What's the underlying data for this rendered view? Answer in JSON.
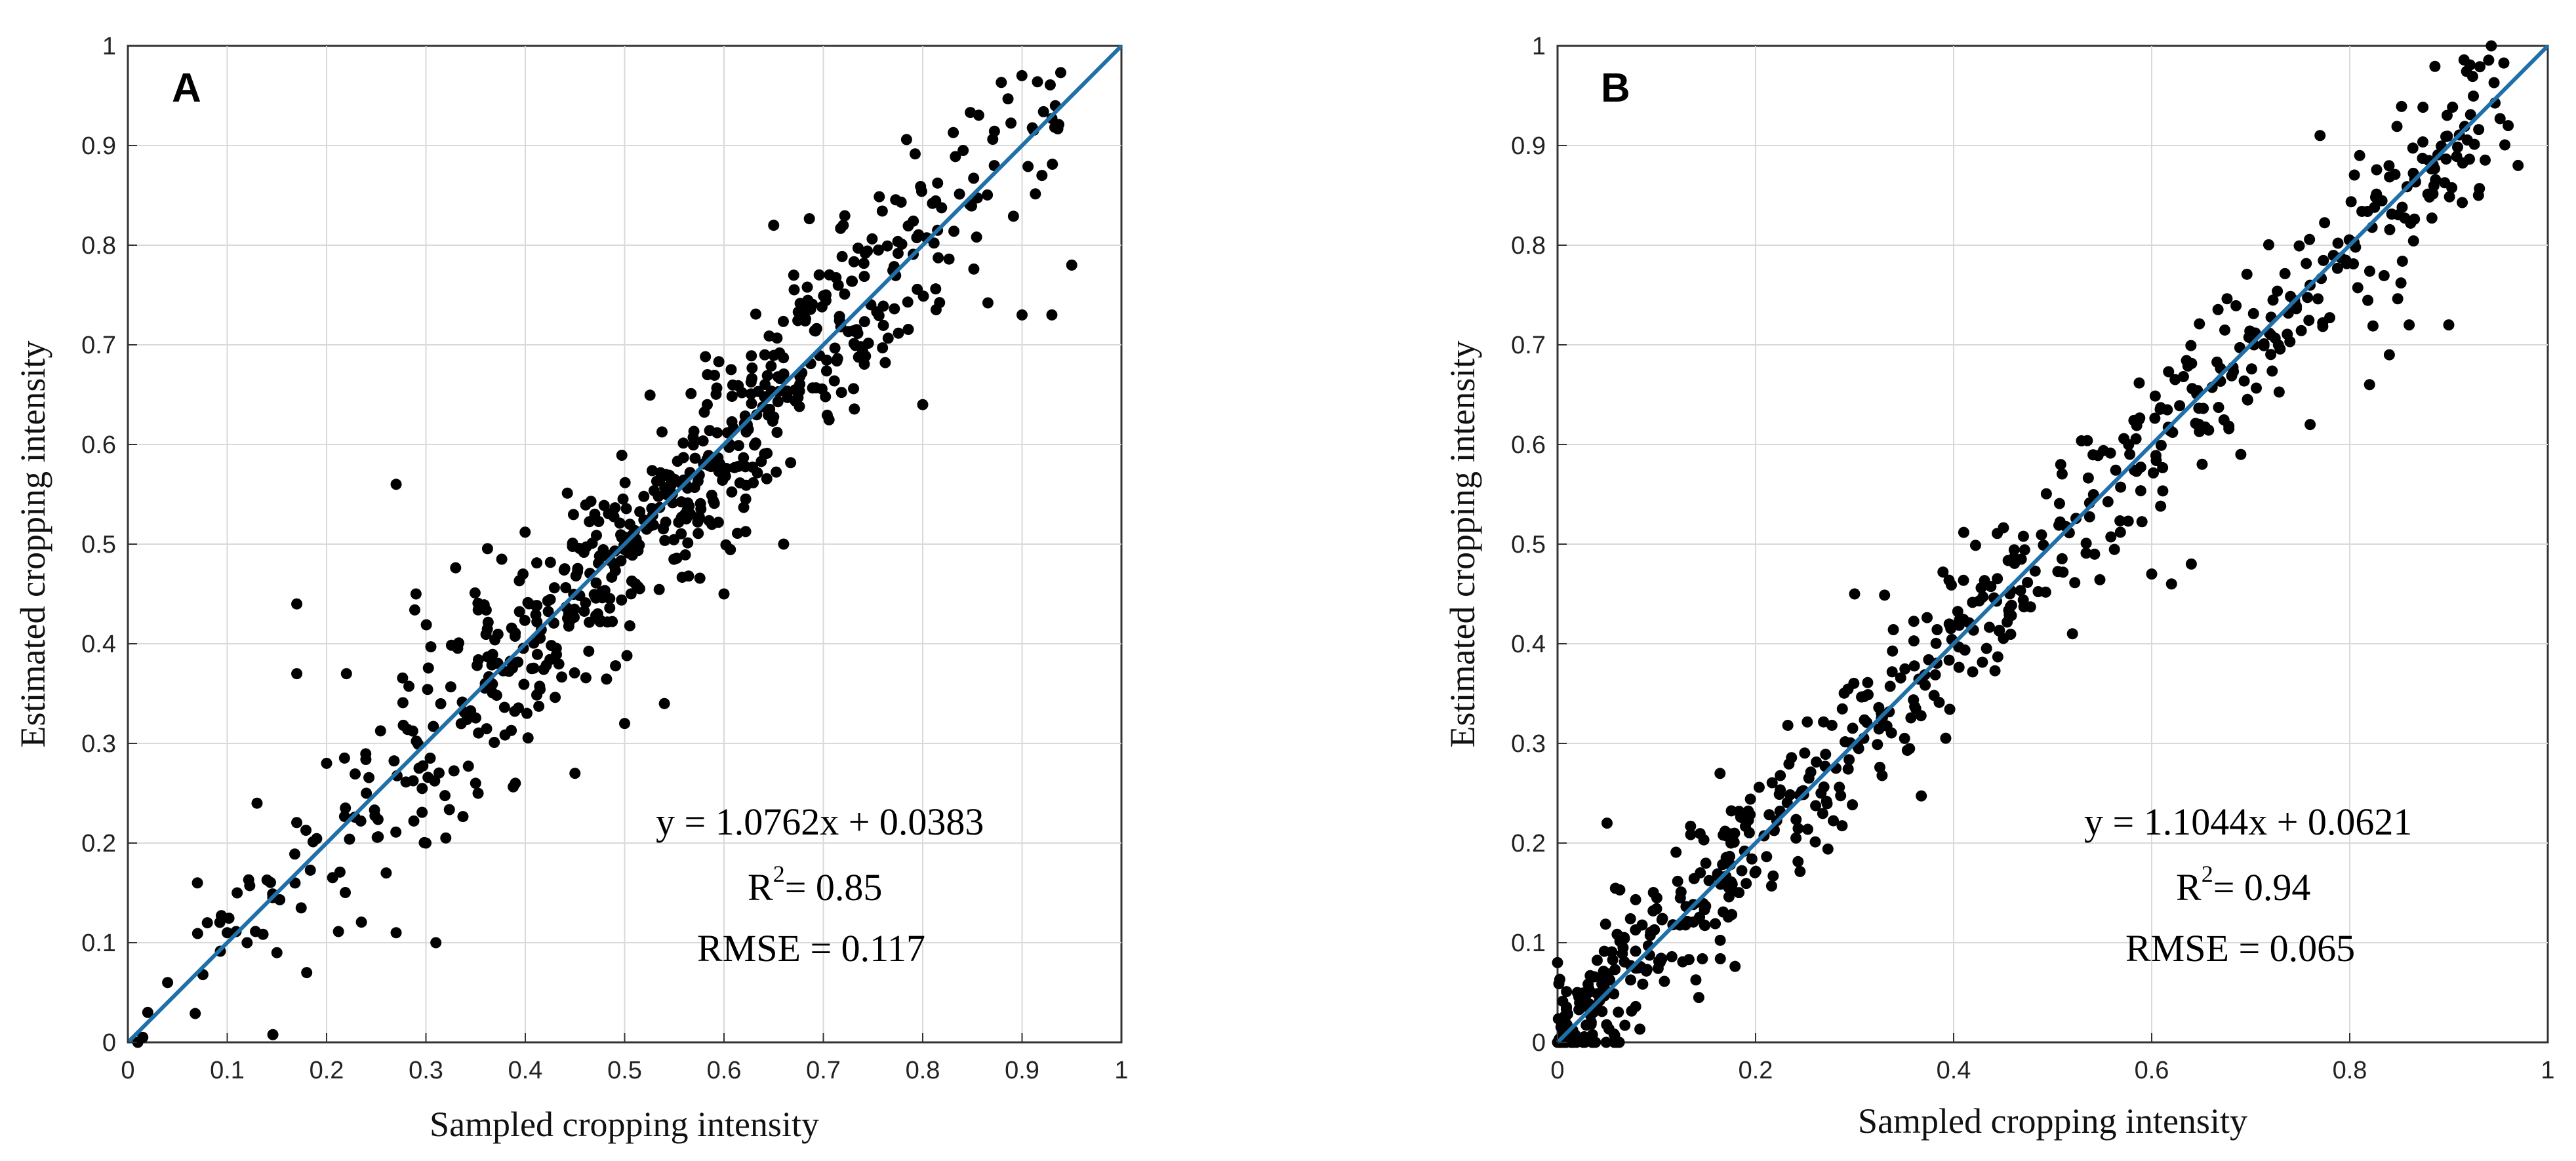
{
  "chart_data": [
    {
      "type": "scatter",
      "panel_label": "A",
      "xlabel": "Sampled cropping intensity",
      "ylabel": "Estimated cropping intensity",
      "xlim": [
        0,
        1
      ],
      "ylim": [
        0,
        1
      ],
      "xticks": [
        "0",
        "0.1",
        "0.2",
        "0.3",
        "0.4",
        "0.5",
        "0.6",
        "0.7",
        "0.8",
        "0.9",
        "1"
      ],
      "yticks": [
        "0",
        "0.1",
        "0.2",
        "0.3",
        "0.4",
        "0.5",
        "0.6",
        "0.7",
        "0.8",
        "0.9",
        "1"
      ],
      "grid": true,
      "reference_line": {
        "slope": 1,
        "intercept": 0,
        "color": "#1f6fa8"
      },
      "annotation": {
        "equation": "y = 1.0762x + 0.0383",
        "r2_prefix": "R",
        "r2_exp": "2",
        "r2_value": "= 0.85",
        "rmse": "RMSE = 0.117"
      },
      "scatter_model": {
        "n": 620,
        "seed": 11,
        "slope": 1.0,
        "intercept": 0.0,
        "noise": 0.05,
        "x_min": 0.01,
        "x_max": 0.95
      },
      "points": [
        [
          0.01,
          0.0
        ],
        [
          0.015,
          0.005
        ],
        [
          0.02,
          0.03
        ],
        [
          0.04,
          0.06
        ],
        [
          0.07,
          0.16
        ],
        [
          0.08,
          0.12
        ],
        [
          0.1,
          0.11
        ],
        [
          0.11,
          0.15
        ],
        [
          0.12,
          0.1
        ],
        [
          0.13,
          0.24
        ],
        [
          0.15,
          0.09
        ],
        [
          0.17,
          0.44
        ],
        [
          0.17,
          0.37
        ],
        [
          0.18,
          0.07
        ],
        [
          0.2,
          0.28
        ],
        [
          0.22,
          0.37
        ],
        [
          0.24,
          0.25
        ],
        [
          0.26,
          0.17
        ],
        [
          0.27,
          0.56
        ],
        [
          0.27,
          0.11
        ],
        [
          0.29,
          0.45
        ],
        [
          0.3,
          0.2
        ],
        [
          0.31,
          0.1
        ],
        [
          0.35,
          0.26
        ],
        [
          0.39,
          0.26
        ],
        [
          0.45,
          0.27
        ],
        [
          0.5,
          0.32
        ],
        [
          0.54,
          0.34
        ],
        [
          0.6,
          0.45
        ],
        [
          0.65,
          0.82
        ],
        [
          0.66,
          0.5
        ],
        [
          0.72,
          0.82
        ],
        [
          0.8,
          0.64
        ],
        [
          0.9,
          0.73
        ],
        [
          0.92,
          0.87
        ],
        [
          0.93,
          0.73
        ],
        [
          0.95,
          0.78
        ]
      ]
    },
    {
      "type": "scatter",
      "panel_label": "B",
      "xlabel": "Sampled cropping intensity",
      "ylabel": "Estimated cropping intensity",
      "xlim": [
        0,
        1
      ],
      "ylim": [
        0,
        1
      ],
      "xticks": [
        "0",
        "0.2",
        "0.4",
        "0.6",
        "0.8",
        "1"
      ],
      "yticks": [
        "0",
        "0.1",
        "0.2",
        "0.3",
        "0.4",
        "0.5",
        "0.6",
        "0.7",
        "0.8",
        "0.9",
        "1"
      ],
      "grid": true,
      "reference_line": {
        "slope": 1,
        "intercept": 0,
        "color": "#1f6fa8"
      },
      "annotation": {
        "equation": "y = 1.1044x + 0.0621",
        "r2_prefix": "R",
        "r2_exp": "2",
        "r2_value": "= 0.94",
        "rmse": "RMSE = 0.065"
      },
      "scatter_model": {
        "n": 640,
        "seed": 29,
        "slope": 1.0,
        "intercept": 0.0,
        "noise": 0.04,
        "x_min": 0.0,
        "x_max": 0.97
      },
      "points": [
        [
          0.0,
          0.0
        ],
        [
          0.0,
          0.08
        ],
        [
          0.02,
          0.05
        ],
        [
          0.05,
          0.22
        ],
        [
          0.3,
          0.45
        ],
        [
          0.52,
          0.41
        ],
        [
          0.6,
          0.47
        ],
        [
          0.62,
          0.46
        ],
        [
          0.64,
          0.48
        ],
        [
          0.69,
          0.59
        ],
        [
          0.76,
          0.62
        ],
        [
          0.77,
          0.91
        ],
        [
          0.81,
          0.89
        ],
        [
          0.82,
          0.66
        ],
        [
          0.84,
          0.69
        ],
        [
          0.86,
          0.72
        ],
        [
          0.9,
          0.72
        ],
        [
          0.93,
          0.85
        ],
        [
          0.96,
          0.92
        ],
        [
          0.97,
          0.88
        ]
      ]
    }
  ]
}
